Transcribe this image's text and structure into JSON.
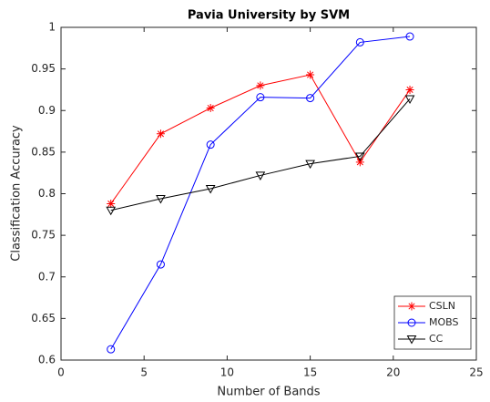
{
  "chart_data": {
    "type": "line",
    "title": "Pavia University by SVM",
    "x_label": "Number of Bands",
    "y_label": "Classification Accuracy",
    "x": [
      3,
      6,
      9,
      12,
      15,
      18,
      21
    ],
    "series": [
      {
        "name": "CSLN",
        "color": "#ff0000",
        "marker": "star",
        "values": [
          0.788,
          0.872,
          0.903,
          0.93,
          0.943,
          0.838,
          0.925
        ]
      },
      {
        "name": "MOBS",
        "color": "#0000ff",
        "marker": "circle",
        "values": [
          0.613,
          0.715,
          0.859,
          0.916,
          0.915,
          0.982,
          0.989
        ]
      },
      {
        "name": "CC",
        "color": "#000000",
        "marker": "triangle-down",
        "values": [
          0.78,
          0.794,
          0.806,
          0.822,
          0.836,
          0.845,
          0.914
        ]
      }
    ],
    "xlim": [
      0,
      25
    ],
    "xticks": [
      0,
      5,
      10,
      15,
      20,
      25
    ],
    "ylim": [
      0.6,
      1
    ],
    "yticks": [
      0.6,
      0.65,
      0.7,
      0.75,
      0.8,
      0.85,
      0.9,
      0.95,
      1
    ],
    "grid": false,
    "legend": "southeast"
  }
}
